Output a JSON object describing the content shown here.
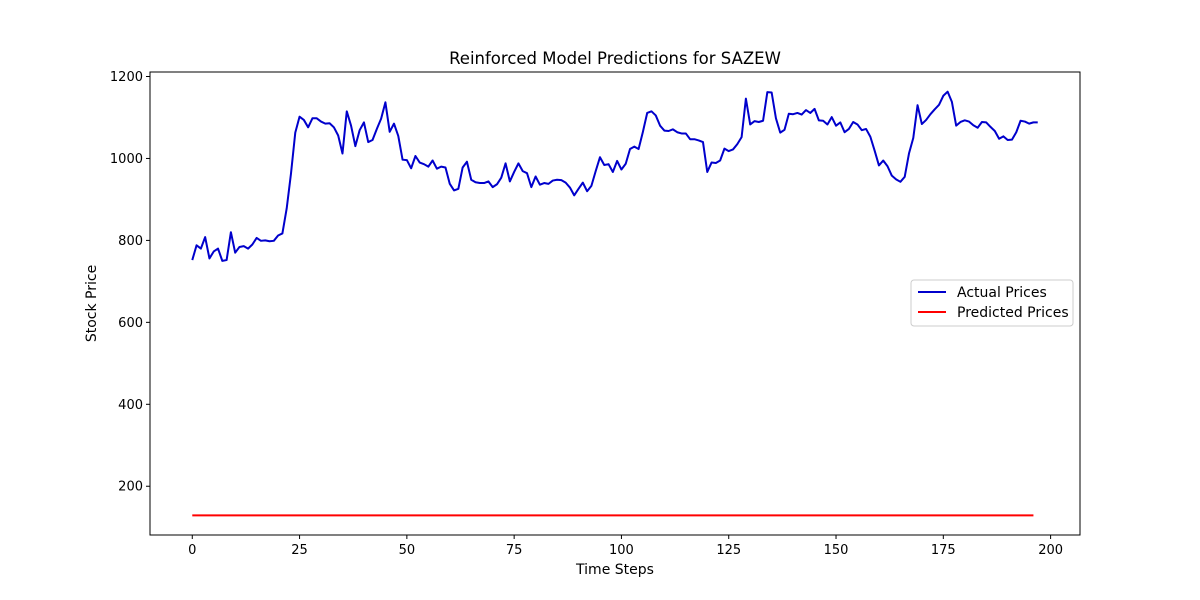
{
  "chart_data": {
    "type": "line",
    "title": "Reinforced Model Predictions for SAZEW",
    "xlabel": "Time Steps",
    "ylabel": "Stock Price",
    "xlim": [
      -9.85,
      206.85
    ],
    "ylim": [
      81,
      1211
    ],
    "xticks": [
      0,
      25,
      50,
      75,
      100,
      125,
      150,
      175,
      200
    ],
    "yticks": [
      200,
      400,
      600,
      800,
      1000,
      1200
    ],
    "grid": false,
    "legend_position": "center-right",
    "series": [
      {
        "name": "Actual Prices",
        "color": "#0000cc",
        "values": [
          752,
          788,
          780,
          808,
          756,
          773,
          780,
          750,
          752,
          820,
          770,
          784,
          786,
          780,
          790,
          806,
          799,
          800,
          798,
          799,
          812,
          817,
          878,
          963,
          1063,
          1102,
          1094,
          1076,
          1098,
          1098,
          1090,
          1085,
          1086,
          1076,
          1056,
          1012,
          1115,
          1080,
          1030,
          1069,
          1088,
          1040,
          1045,
          1072,
          1097,
          1137,
          1065,
          1085,
          1055,
          997,
          996,
          976,
          1006,
          990,
          986,
          980,
          995,
          975,
          980,
          978,
          938,
          922,
          926,
          978,
          992,
          948,
          942,
          940,
          940,
          944,
          930,
          937,
          953,
          988,
          944,
          967,
          988,
          969,
          964,
          930,
          956,
          936,
          940,
          938,
          946,
          948,
          947,
          941,
          929,
          910,
          926,
          941,
          920,
          933,
          969,
          1003,
          984,
          986,
          967,
          994,
          973,
          987,
          1023,
          1029,
          1023,
          1065,
          1111,
          1115,
          1105,
          1080,
          1068,
          1067,
          1071,
          1064,
          1061,
          1061,
          1047,
          1047,
          1044,
          1040,
          967,
          990,
          989,
          995,
          1024,
          1018,
          1022,
          1035,
          1052,
          1146,
          1083,
          1091,
          1089,
          1092,
          1162,
          1161,
          1098,
          1063,
          1070,
          1109,
          1108,
          1111,
          1107,
          1118,
          1111,
          1121,
          1093,
          1092,
          1083,
          1101,
          1080,
          1088,
          1064,
          1072,
          1089,
          1083,
          1069,
          1072,
          1053,
          1019,
          983,
          995,
          981,
          958,
          949,
          943,
          955,
          1012,
          1050,
          1130,
          1084,
          1094,
          1108,
          1120,
          1131,
          1153,
          1163,
          1138,
          1080,
          1089,
          1093,
          1090,
          1081,
          1075,
          1089,
          1088,
          1077,
          1067,
          1048,
          1054,
          1045,
          1046,
          1064,
          1092,
          1090,
          1085,
          1088,
          1088
        ]
      },
      {
        "name": "Predicted Prices",
        "color": "#ff0000",
        "x_range": [
          0,
          196
        ],
        "constant_value": 129
      }
    ]
  }
}
